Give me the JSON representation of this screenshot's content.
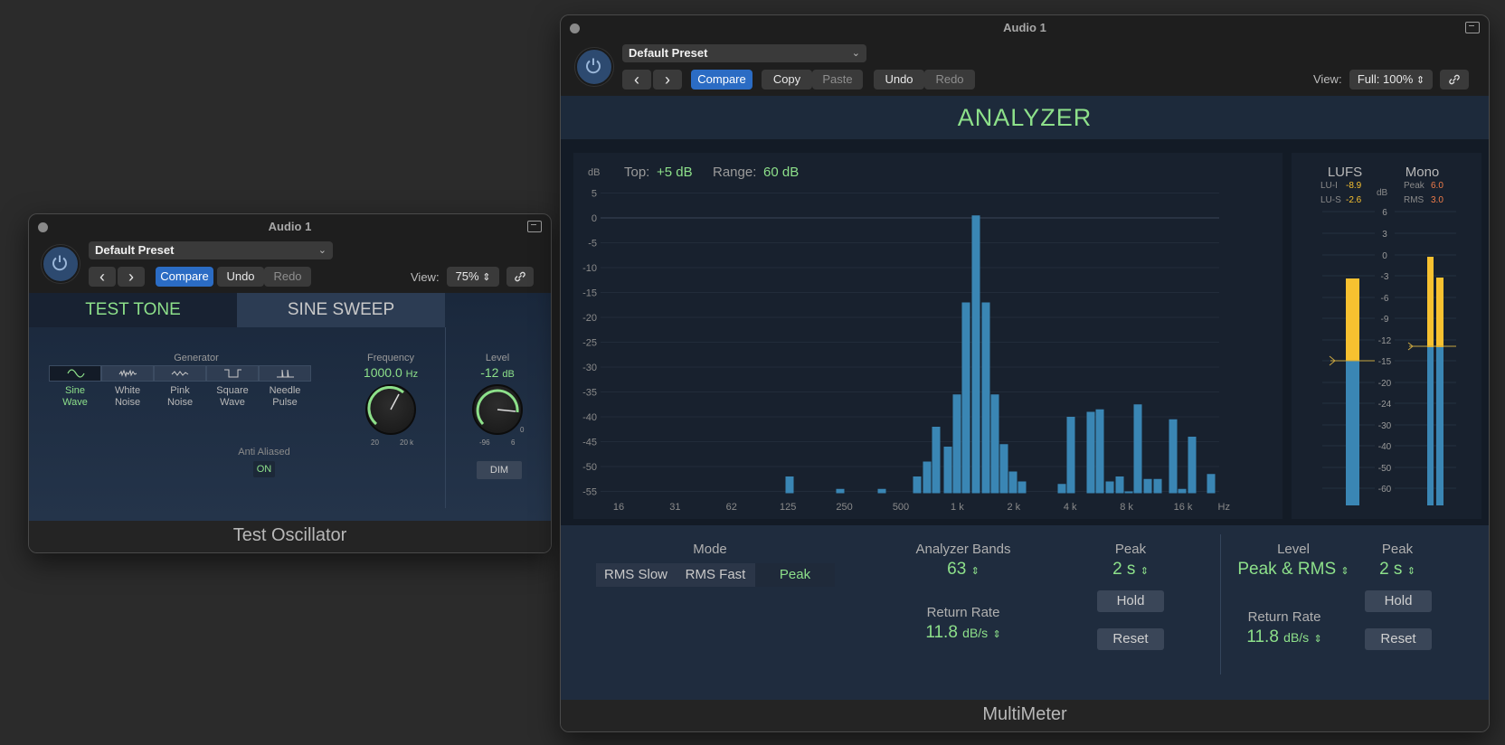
{
  "osc": {
    "title": "Audio 1",
    "preset": "Default Preset",
    "nav_prev": "‹",
    "nav_next": "›",
    "compare": "Compare",
    "undo": "Undo",
    "redo": "Redo",
    "view_label": "View:",
    "view_value": "75%",
    "tabs": [
      "TEST TONE",
      "SINE SWEEP"
    ],
    "generator_label": "Generator",
    "waveforms": [
      {
        "label1": "Sine",
        "label2": "Wave",
        "icon": "sine-wave-icon",
        "selected": true
      },
      {
        "label1": "White",
        "label2": "Noise",
        "icon": "white-noise-icon",
        "selected": false
      },
      {
        "label1": "Pink",
        "label2": "Noise",
        "icon": "pink-noise-icon",
        "selected": false
      },
      {
        "label1": "Square",
        "label2": "Wave",
        "icon": "square-wave-icon",
        "selected": false
      },
      {
        "label1": "Needle",
        "label2": "Pulse",
        "icon": "needle-pulse-icon",
        "selected": false
      }
    ],
    "frequency_label": "Frequency",
    "frequency_value": "1000.0",
    "frequency_unit": "Hz",
    "frequency_min": "20",
    "frequency_max": "20 k",
    "level_label": "Level",
    "level_value": "-12",
    "level_unit": "dB",
    "level_min": "-96",
    "level_max": "6",
    "level_zero": "0",
    "anti_aliased_label": "Anti Aliased",
    "anti_aliased_value": "ON",
    "dim": "DIM",
    "footer": "Test Oscillator"
  },
  "mm": {
    "title": "Audio 1",
    "preset": "Default Preset",
    "nav_prev": "‹",
    "nav_next": "›",
    "compare": "Compare",
    "copy": "Copy",
    "paste": "Paste",
    "undo": "Undo",
    "redo": "Redo",
    "view_label": "View:",
    "view_value": "Full: 100%",
    "header": "ANALYZER",
    "db_label": "dB",
    "top_label": "Top:",
    "top_value": "+5 dB",
    "range_label": "Range:",
    "range_value": "60 dB",
    "y_ticks": [
      "5",
      "0",
      "-5",
      "-10",
      "-15",
      "-20",
      "-25",
      "-30",
      "-35",
      "-40",
      "-45",
      "-50",
      "-55"
    ],
    "x_ticks": [
      "16",
      "31",
      "62",
      "125",
      "250",
      "500",
      "1 k",
      "2 k",
      "4 k",
      "8 k",
      "16 k"
    ],
    "x_unit": "Hz",
    "bands_db": [
      -52,
      -54.5,
      -54.5,
      -52,
      -49,
      -42,
      -46,
      -35.5,
      -17,
      0.5,
      -17,
      -35.5,
      -45.5,
      -51,
      -53,
      -53.5,
      -40,
      -39,
      -38.5,
      -53,
      -52,
      -55,
      -37.5,
      -52.5,
      -52.5,
      -40.5,
      -54.5,
      -44,
      -51.5
    ],
    "lufs_label": "LUFS",
    "lu_i_label": "LU-I",
    "lu_i_value": "-8.9",
    "lu_s_label": "LU-S",
    "lu_s_value": "-2.6",
    "lufs_db_label": "dB",
    "mono_label": "Mono",
    "peak_label": "Peak",
    "peak_value": "6.0",
    "rms_label": "RMS",
    "rms_value": "3.0",
    "meter_ticks": [
      "6",
      "3",
      "0",
      "-3",
      "-6",
      "-9",
      "-12",
      "-15",
      "-20",
      "-24",
      "-30",
      "-40",
      "-50",
      "-60"
    ],
    "mode_label": "Mode",
    "modes": [
      "RMS Slow",
      "RMS Fast",
      "Peak"
    ],
    "bands_label": "Analyzer Bands",
    "bands_value": "63",
    "peak1_label": "Peak",
    "peak1_value": "2 s",
    "hold1": "Hold",
    "reset1": "Reset",
    "return1_label": "Return Rate",
    "return1_value": "11.8",
    "return1_unit": "dB/s",
    "level_label": "Level",
    "level_value": "Peak & RMS",
    "peak2_label": "Peak",
    "peak2_value": "2 s",
    "hold2": "Hold",
    "reset2": "Reset",
    "return2_label": "Return Rate",
    "return2_value": "11.8",
    "return2_unit": "dB/s",
    "footer": "MultiMeter"
  },
  "colors": {
    "accent_green": "#8de08a",
    "bar_blue": "#3a86b4",
    "meter_yellow": "#f7c130",
    "compare_blue": "#2b6cc4"
  }
}
